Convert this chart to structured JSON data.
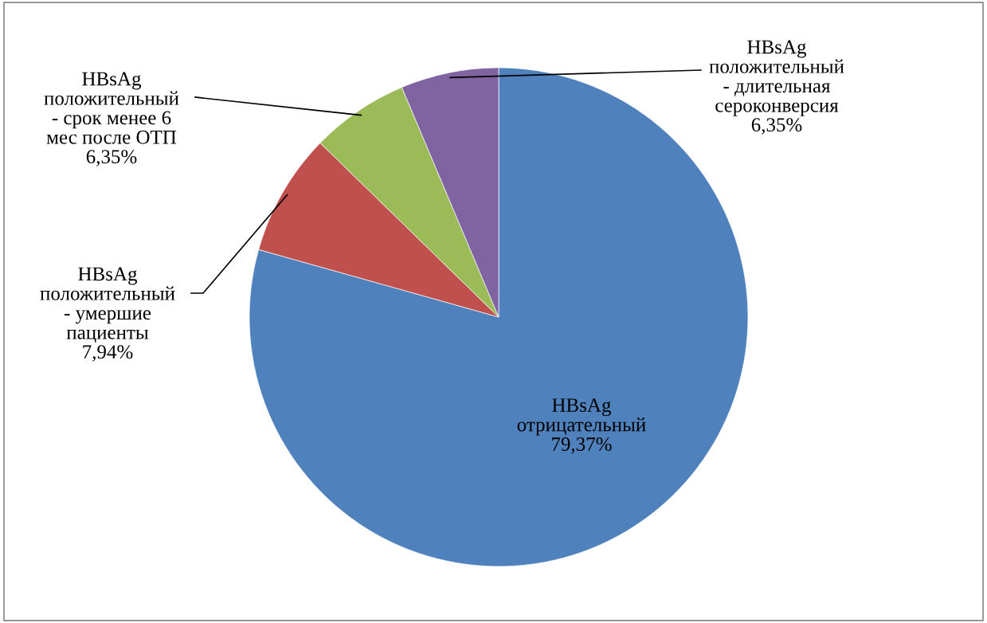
{
  "chart_data": {
    "type": "pie",
    "categories": [
      "HBsAg\nотрицательный",
      "HBsAg\nположительный\n- умершие\nпациенты",
      "HBsAg\nположительный\n- срок менее 6\nмес после ОТП",
      "HBsAg\nположительный\n- длительная\nсероконверсия"
    ],
    "values": [
      79.37,
      7.94,
      6.35,
      6.35
    ],
    "value_labels": [
      "79,37%",
      "7,94%",
      "6,35%",
      "6,35%"
    ],
    "colors": [
      "#4f81bd",
      "#c0504d",
      "#9bbb59",
      "#8064a2"
    ],
    "legend": false
  }
}
